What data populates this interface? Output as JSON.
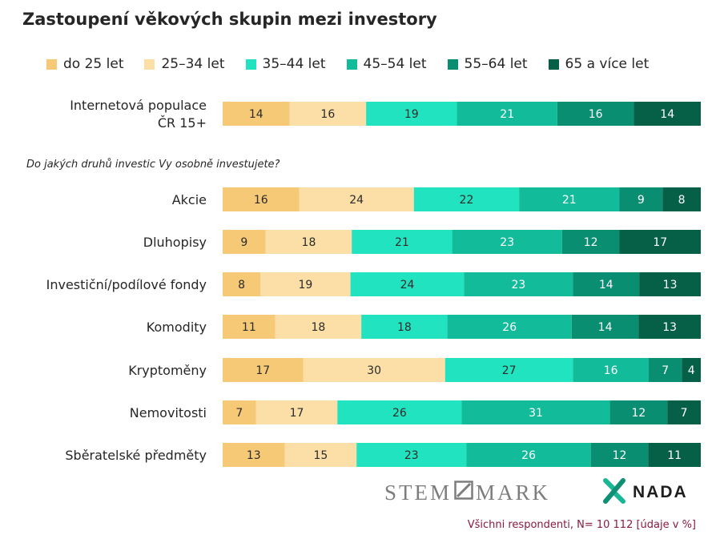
{
  "title": "Zastoupení věkových skupin mezi investory",
  "chart_data": {
    "type": "bar",
    "orientation": "horizontal",
    "stacked": true,
    "title": "Zastoupení věkových skupin mezi investory",
    "legend_position": "top",
    "grid": false,
    "xlim": [
      0,
      100
    ],
    "series": [
      {
        "name": "do 25 let",
        "color": "#f6c977"
      },
      {
        "name": "25–34 let",
        "color": "#fbdfa6"
      },
      {
        "name": "35–44 let",
        "color": "#22e3c0"
      },
      {
        "name": "45–54 let",
        "color": "#12bc9b"
      },
      {
        "name": "55–64 let",
        "color": "#0a8e72"
      },
      {
        "name": "65 a více let",
        "color": "#065f47"
      }
    ],
    "rows": [
      {
        "label": [
          "Internetová populace",
          "ČR 15+"
        ],
        "values": [
          14,
          16,
          19,
          21,
          16,
          14
        ]
      },
      {
        "label": [
          "Akcie"
        ],
        "values": [
          16,
          24,
          22,
          21,
          9,
          8
        ]
      },
      {
        "label": [
          "Dluhopisy"
        ],
        "values": [
          9,
          18,
          21,
          23,
          12,
          17
        ]
      },
      {
        "label": [
          "Investiční/podílové fondy"
        ],
        "values": [
          8,
          19,
          24,
          23,
          14,
          13
        ]
      },
      {
        "label": [
          "Komodity"
        ],
        "values": [
          11,
          18,
          18,
          26,
          14,
          13
        ]
      },
      {
        "label": [
          "Kryptoměny"
        ],
        "values": [
          17,
          30,
          27,
          16,
          7,
          4
        ]
      },
      {
        "label": [
          "Nemovitosti"
        ],
        "values": [
          7,
          17,
          26,
          31,
          12,
          7
        ]
      },
      {
        "label": [
          "Sběratelské předměty"
        ],
        "values": [
          13,
          15,
          23,
          26,
          12,
          11
        ]
      }
    ],
    "question": "Do jakých druhů investic Vy osobně investujete?",
    "base_note": "Všichni respondenti, N= 10 112 [údaje v %]"
  },
  "legend": [
    {
      "label": "do 25 let",
      "color": "#f6c977"
    },
    {
      "label": "25–34 let",
      "color": "#fbdfa6"
    },
    {
      "label": "35–44 let",
      "color": "#22e3c0"
    },
    {
      "label": "45–54 let",
      "color": "#12bc9b"
    },
    {
      "label": "55–64 let",
      "color": "#0a8e72"
    },
    {
      "label": "65 a více let",
      "color": "#065f47"
    }
  ],
  "question": "Do jakých druhů investic Vy osobně investujete?",
  "footer_note": "Všichni respondenti, N= 10 112 [údaje v %]",
  "logos": {
    "stem_left": "STEM",
    "stem_right": "MARK",
    "nada": "NADA"
  }
}
